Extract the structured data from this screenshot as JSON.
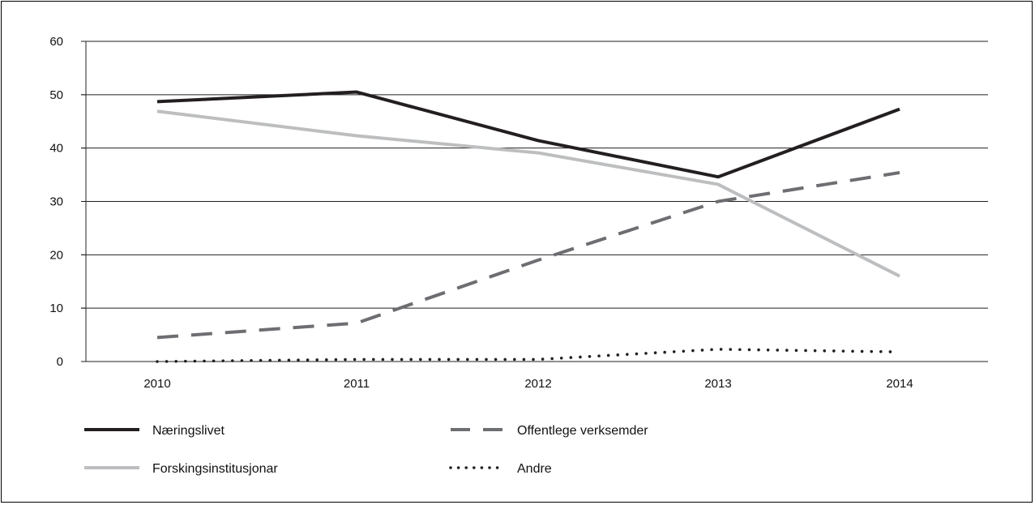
{
  "chart_data": {
    "type": "line",
    "title": "",
    "xlabel": "",
    "ylabel": "",
    "categories": [
      "2010",
      "2011",
      "2012",
      "2013",
      "2014"
    ],
    "ylim": [
      0,
      60
    ],
    "yticks": [
      "0",
      "10",
      "20",
      "30",
      "40",
      "50",
      "60"
    ],
    "grid": "horizontal",
    "legend_position": "bottom",
    "series": [
      {
        "name": "Næringslivet",
        "values": [
          48.7,
          50.5,
          41.4,
          34.6,
          47.3
        ],
        "color": "#231f20",
        "style": "solid"
      },
      {
        "name": "Offentlege verksemder",
        "values": [
          4.5,
          7.2,
          19.0,
          30.0,
          35.4
        ],
        "color": "#6d6e71",
        "style": "dashed"
      },
      {
        "name": "Forskingsinstitusjonar",
        "values": [
          46.9,
          42.3,
          39.1,
          33.2,
          16.0
        ],
        "color": "#bcbec0",
        "style": "solid"
      },
      {
        "name": "Andre",
        "values": [
          0.0,
          0.4,
          0.4,
          2.3,
          1.8
        ],
        "color": "#231f20",
        "style": "dotted"
      }
    ]
  }
}
